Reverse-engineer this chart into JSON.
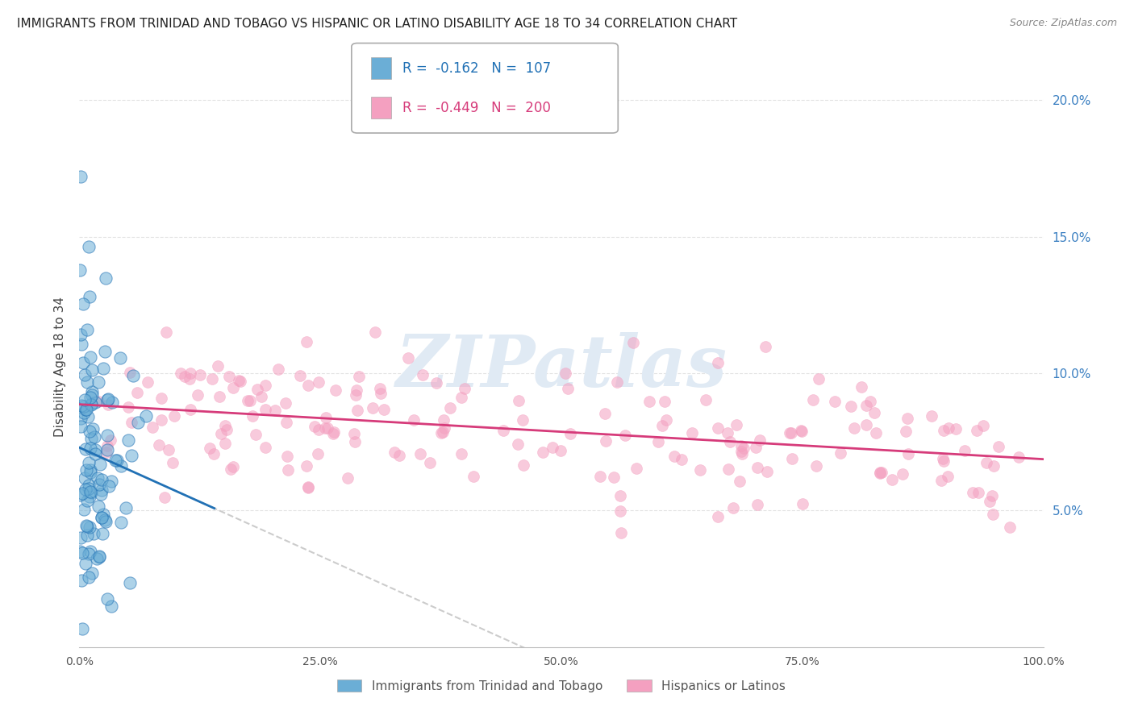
{
  "title": "IMMIGRANTS FROM TRINIDAD AND TOBAGO VS HISPANIC OR LATINO DISABILITY AGE 18 TO 34 CORRELATION CHART",
  "source": "Source: ZipAtlas.com",
  "ylabel": "Disability Age 18 to 34",
  "r_tt": -0.162,
  "n_tt": 107,
  "r_hl": -0.449,
  "n_hl": 200,
  "color_tt": "#6baed6",
  "color_hl": "#f4a0c0",
  "trendline_tt": "#2171b5",
  "trendline_hl": "#d63b7a",
  "watermark_color": "#e0eaf4",
  "dashed_color": "#cccccc",
  "xlim": [
    0.0,
    1.0
  ],
  "ylim": [
    0.0,
    0.205
  ],
  "ytick_vals": [
    0.05,
    0.1,
    0.15,
    0.2
  ],
  "ytick_labels": [
    "5.0%",
    "10.0%",
    "15.0%",
    "20.0%"
  ],
  "xtick_vals": [
    0.0,
    0.25,
    0.5,
    0.75,
    1.0
  ],
  "xtick_labels": [
    "0.0%",
    "25.0%",
    "50.0%",
    "75.0%",
    "100.0%"
  ],
  "legend_tt": "Immigrants from Trinidad and Tobago",
  "legend_hl": "Hispanics or Latinos",
  "background_color": "#ffffff",
  "grid_color": "#dddddd",
  "right_axis_color": "#3a7fc1",
  "scatter_size_tt": 120,
  "scatter_size_hl": 100,
  "scatter_alpha_tt": 0.55,
  "scatter_alpha_hl": 0.55
}
